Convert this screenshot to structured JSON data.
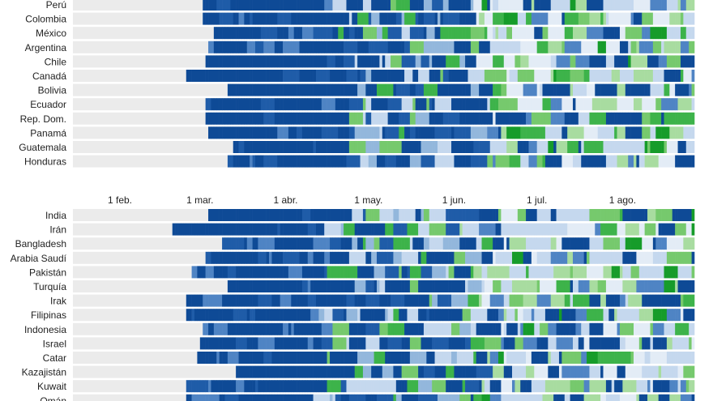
{
  "chart_data": [
    {
      "type": "heatmap",
      "x_ticks": [
        "1 feb.",
        "1 mar.",
        "1 abr.",
        "1 may.",
        "1 jun.",
        "1 jul.",
        "1 ago."
      ],
      "x_ticks_visible": false,
      "rows": [
        {
          "label": "Perú",
          "start": "2020-03-02",
          "seed": 11
        },
        {
          "label": "Colombia",
          "start": "2020-03-02",
          "seed": 23
        },
        {
          "label": "México",
          "start": "2020-03-06",
          "seed": 37
        },
        {
          "label": "Argentina",
          "start": "2020-03-04",
          "seed": 41
        },
        {
          "label": "Chile",
          "start": "2020-03-03",
          "seed": 53
        },
        {
          "label": "Canadá",
          "start": "2020-02-25",
          "seed": 67
        },
        {
          "label": "Bolivia",
          "start": "2020-03-11",
          "seed": 71
        },
        {
          "label": "Ecuador",
          "start": "2020-03-03",
          "seed": 83
        },
        {
          "label": "Rep. Dom.",
          "start": "2020-03-03",
          "seed": 97
        },
        {
          "label": "Panamá",
          "start": "2020-03-04",
          "seed": 101
        },
        {
          "label": "Guatemala",
          "start": "2020-03-13",
          "seed": 113
        },
        {
          "label": "Honduras",
          "start": "2020-03-11",
          "seed": 127
        }
      ],
      "palette": {
        "empty": "#ebebeb",
        "levels": [
          "#e3ecf6",
          "#c5d8ee",
          "#93b7dc",
          "#4f84c4",
          "#1f5ca8",
          "#0e4a96",
          "#a8dcA0",
          "#76c96d",
          "#3db34a",
          "#169c2a"
        ]
      }
    },
    {
      "type": "heatmap",
      "x_ticks": [
        "1 feb.",
        "1 mar.",
        "1 abr.",
        "1 may.",
        "1 jun.",
        "1 jul.",
        "1 ago."
      ],
      "x_ticks_visible": true,
      "rows": [
        {
          "label": "India",
          "start": "2020-03-04",
          "seed": 131
        },
        {
          "label": "Irán",
          "start": "2020-02-20",
          "seed": 137
        },
        {
          "label": "Bangladesh",
          "start": "2020-03-09",
          "seed": 139
        },
        {
          "label": "Arabia Saudí",
          "start": "2020-03-03",
          "seed": 149
        },
        {
          "label": "Pakistán",
          "start": "2020-02-27",
          "seed": 151
        },
        {
          "label": "Turquía",
          "start": "2020-03-11",
          "seed": 157
        },
        {
          "label": "Irak",
          "start": "2020-02-25",
          "seed": 163
        },
        {
          "label": "Filipinas",
          "start": "2020-02-25",
          "seed": 167
        },
        {
          "label": "Indonesia",
          "start": "2020-03-02",
          "seed": 173
        },
        {
          "label": "Israel",
          "start": "2020-03-01",
          "seed": 179
        },
        {
          "label": "Catar",
          "start": "2020-02-29",
          "seed": 181
        },
        {
          "label": "Kazajistán",
          "start": "2020-03-14",
          "seed": 191
        },
        {
          "label": "Kuwait",
          "start": "2020-02-25",
          "seed": 193
        },
        {
          "label": "Omán",
          "start": "2020-02-25",
          "seed": 197
        }
      ],
      "palette": {
        "empty": "#ebebeb",
        "levels": [
          "#e3ecf6",
          "#c5d8ee",
          "#93b7dc",
          "#4f84c4",
          "#1f5ca8",
          "#0e4a96",
          "#a8dca0",
          "#76c96d",
          "#3db34a",
          "#169c2a"
        ]
      }
    }
  ]
}
